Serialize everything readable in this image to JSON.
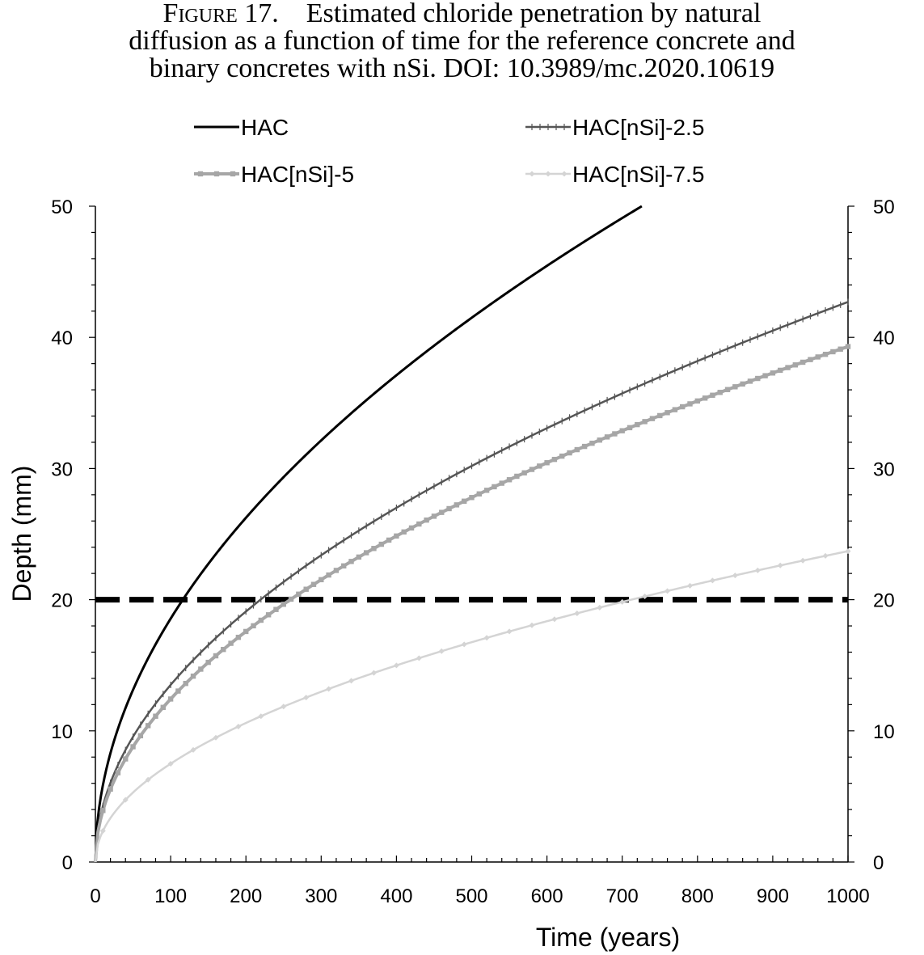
{
  "caption": {
    "figure_label": "Figure 17.",
    "line1": "Estimated chloride penetration by natural",
    "line2": "diffusion as a function of time for the reference concrete and",
    "line3": "binary concretes with nSi. DOI: 10.3989/mc.2020.10619"
  },
  "chart_data": {
    "type": "line",
    "title": "",
    "xlabel": "Time (years)",
    "ylabel": "Depth (mm)",
    "xlim": [
      0,
      1000
    ],
    "ylim": [
      0,
      50
    ],
    "x_ticks": [
      "0",
      "100",
      "200",
      "300",
      "400",
      "500",
      "600",
      "700",
      "800",
      "900",
      "1000"
    ],
    "y_ticks": [
      "0",
      "10",
      "20",
      "30",
      "40",
      "50"
    ],
    "secondary_y_axis": true,
    "grid": false,
    "legend_position": "top",
    "series": [
      {
        "name": "HAC",
        "color": "#000000",
        "marker": "none",
        "x": [
          0,
          5,
          10,
          25,
          50,
          100,
          150,
          200,
          250,
          300,
          400,
          500,
          600,
          700,
          726
        ],
        "y": [
          0,
          4.1,
          5.8,
          9.2,
          13.0,
          18.5,
          22.6,
          26.1,
          29.2,
          32.0,
          37.0,
          41.3,
          45.3,
          48.9,
          50.0
        ]
      },
      {
        "name": "HAC[nSi]-2.5",
        "color": "#555555",
        "marker": "plus",
        "x": [
          0,
          5,
          10,
          25,
          50,
          100,
          150,
          200,
          250,
          300,
          400,
          500,
          600,
          700,
          800,
          900,
          1000
        ],
        "y": [
          0,
          3.0,
          4.3,
          6.8,
          9.6,
          13.5,
          16.5,
          19.1,
          21.4,
          23.4,
          27.0,
          30.2,
          33.1,
          35.7,
          38.2,
          40.5,
          42.7
        ]
      },
      {
        "name": "HAC[nSi]-5",
        "color": "#a6a6a6",
        "marker": "square",
        "x": [
          0,
          5,
          10,
          25,
          50,
          100,
          150,
          200,
          250,
          300,
          400,
          500,
          600,
          700,
          800,
          900,
          1000
        ],
        "y": [
          0,
          2.8,
          3.9,
          6.2,
          8.8,
          12.4,
          15.2,
          17.6,
          19.7,
          21.5,
          24.8,
          27.7,
          30.4,
          32.8,
          35.1,
          37.2,
          39.3
        ]
      },
      {
        "name": "HAC[nSi]-7.5",
        "color": "#d4d4d4",
        "marker": "diamond",
        "x": [
          0,
          5,
          10,
          25,
          50,
          100,
          150,
          200,
          250,
          300,
          400,
          500,
          600,
          700,
          800,
          900,
          1000
        ],
        "y": [
          0,
          1.7,
          2.4,
          3.8,
          5.3,
          7.5,
          9.2,
          10.6,
          11.9,
          13.0,
          15.0,
          16.8,
          18.4,
          19.9,
          21.2,
          22.5,
          23.7
        ]
      }
    ],
    "reference_line": {
      "y": 20,
      "style": "dashed",
      "color": "#000000"
    }
  }
}
